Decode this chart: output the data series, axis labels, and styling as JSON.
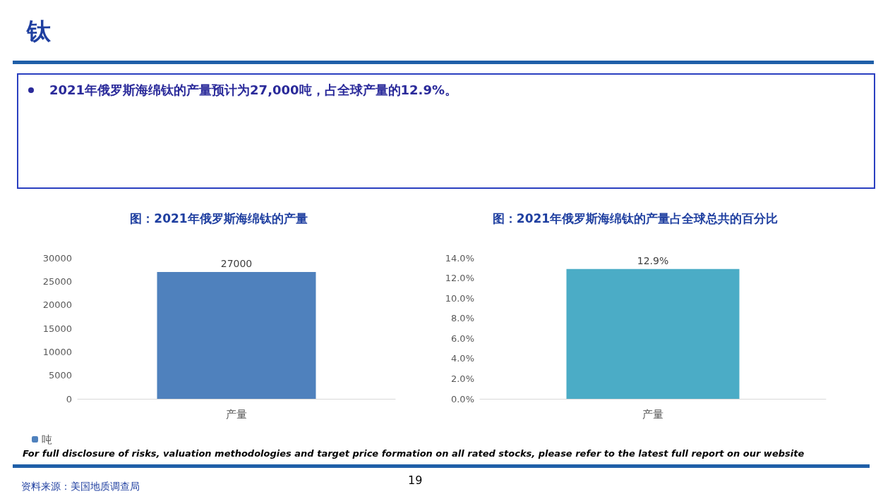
{
  "chart_data": [
    {
      "type": "bar",
      "title": "图：2021年俄罗斯海绵钛的产量",
      "categories": [
        "产量"
      ],
      "series": [
        {
          "name": "吨",
          "color": "#4f81bd",
          "values": [
            27000
          ]
        }
      ],
      "ylim": [
        0,
        30000
      ],
      "yticks": [
        0,
        5000,
        10000,
        15000,
        20000,
        25000,
        30000
      ],
      "grid": false,
      "legend": "bottom left",
      "data_labels": true,
      "annotations": [
        "钛",
        "2021年俄罗斯海绵钛的产量预计为27,000吨，占全球产量的12.9%。"
      ]
    },
    {
      "type": "bar",
      "title": "图：2021年俄罗斯海绵钛的产量占全球总共的百分比",
      "categories": [
        "产量"
      ],
      "series": [
        {
          "color": "#4bacc6",
          "values": [
            12.9
          ]
        }
      ],
      "ylim": [
        0,
        14
      ],
      "yticks": [
        {
          "value": 0,
          "label": "0.0%"
        },
        {
          "value": 2,
          "label": "2.0%"
        },
        {
          "value": 4,
          "label": "4.0%"
        },
        {
          "value": 6,
          "label": "6.0%"
        },
        {
          "value": 8,
          "label": "8.0%"
        },
        {
          "value": 10,
          "label": "10.0%"
        },
        {
          "value": 12,
          "label": "12.0%"
        },
        {
          "value": 14,
          "label": "14.0%"
        }
      ],
      "grid": false,
      "legend": false,
      "value_labels": [
        "12.9%"
      ],
      "annotations": [
        "For full disclosure of risks, valuation methodologies and target price formation on all rated stocks, please refer to the latest full report on our website",
        "资料来源：美国地质调查局",
        "19"
      ]
    }
  ]
}
